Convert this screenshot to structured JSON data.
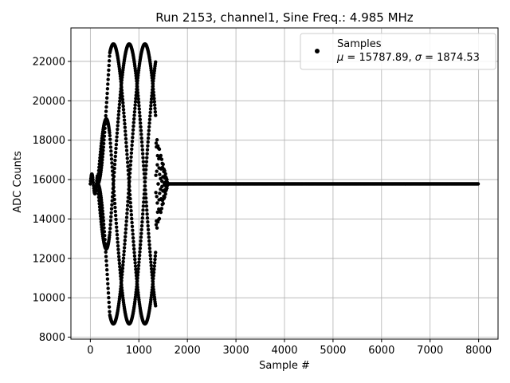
{
  "chart_data": {
    "type": "scatter",
    "title": "Run 2153, channel1, Sine Freq.: 4.985 MHz",
    "xlabel": "Sample #",
    "ylabel": "ADC Counts",
    "xlim": [
      -400,
      8400
    ],
    "ylim": [
      7900,
      23700
    ],
    "xticks": [
      0,
      1000,
      2000,
      3000,
      4000,
      5000,
      6000,
      7000,
      8000
    ],
    "yticks": [
      8000,
      10000,
      12000,
      14000,
      16000,
      18000,
      20000,
      22000
    ],
    "grid": true,
    "legend_position": "top-right",
    "series": [
      {
        "name": "Samples",
        "marker": "dot",
        "color": "#000000",
        "stats_label": "μ = 15787.89, σ = 1874.53",
        "baseline": 15780,
        "burst": {
          "start": 0,
          "end": 1600,
          "peak_amplitude": 7100,
          "envelope_peak_sample": 700,
          "num_phases": 4,
          "beat_period_samples": 1300
        },
        "x_range": [
          0,
          8000
        ]
      }
    ],
    "annotations": {
      "legend_label": "Samples",
      "legend_stats_mu": "μ",
      "legend_stats_mu_value": " = 15787.89, ",
      "legend_stats_sigma": "σ",
      "legend_stats_sigma_value": " = 1874.53"
    }
  }
}
